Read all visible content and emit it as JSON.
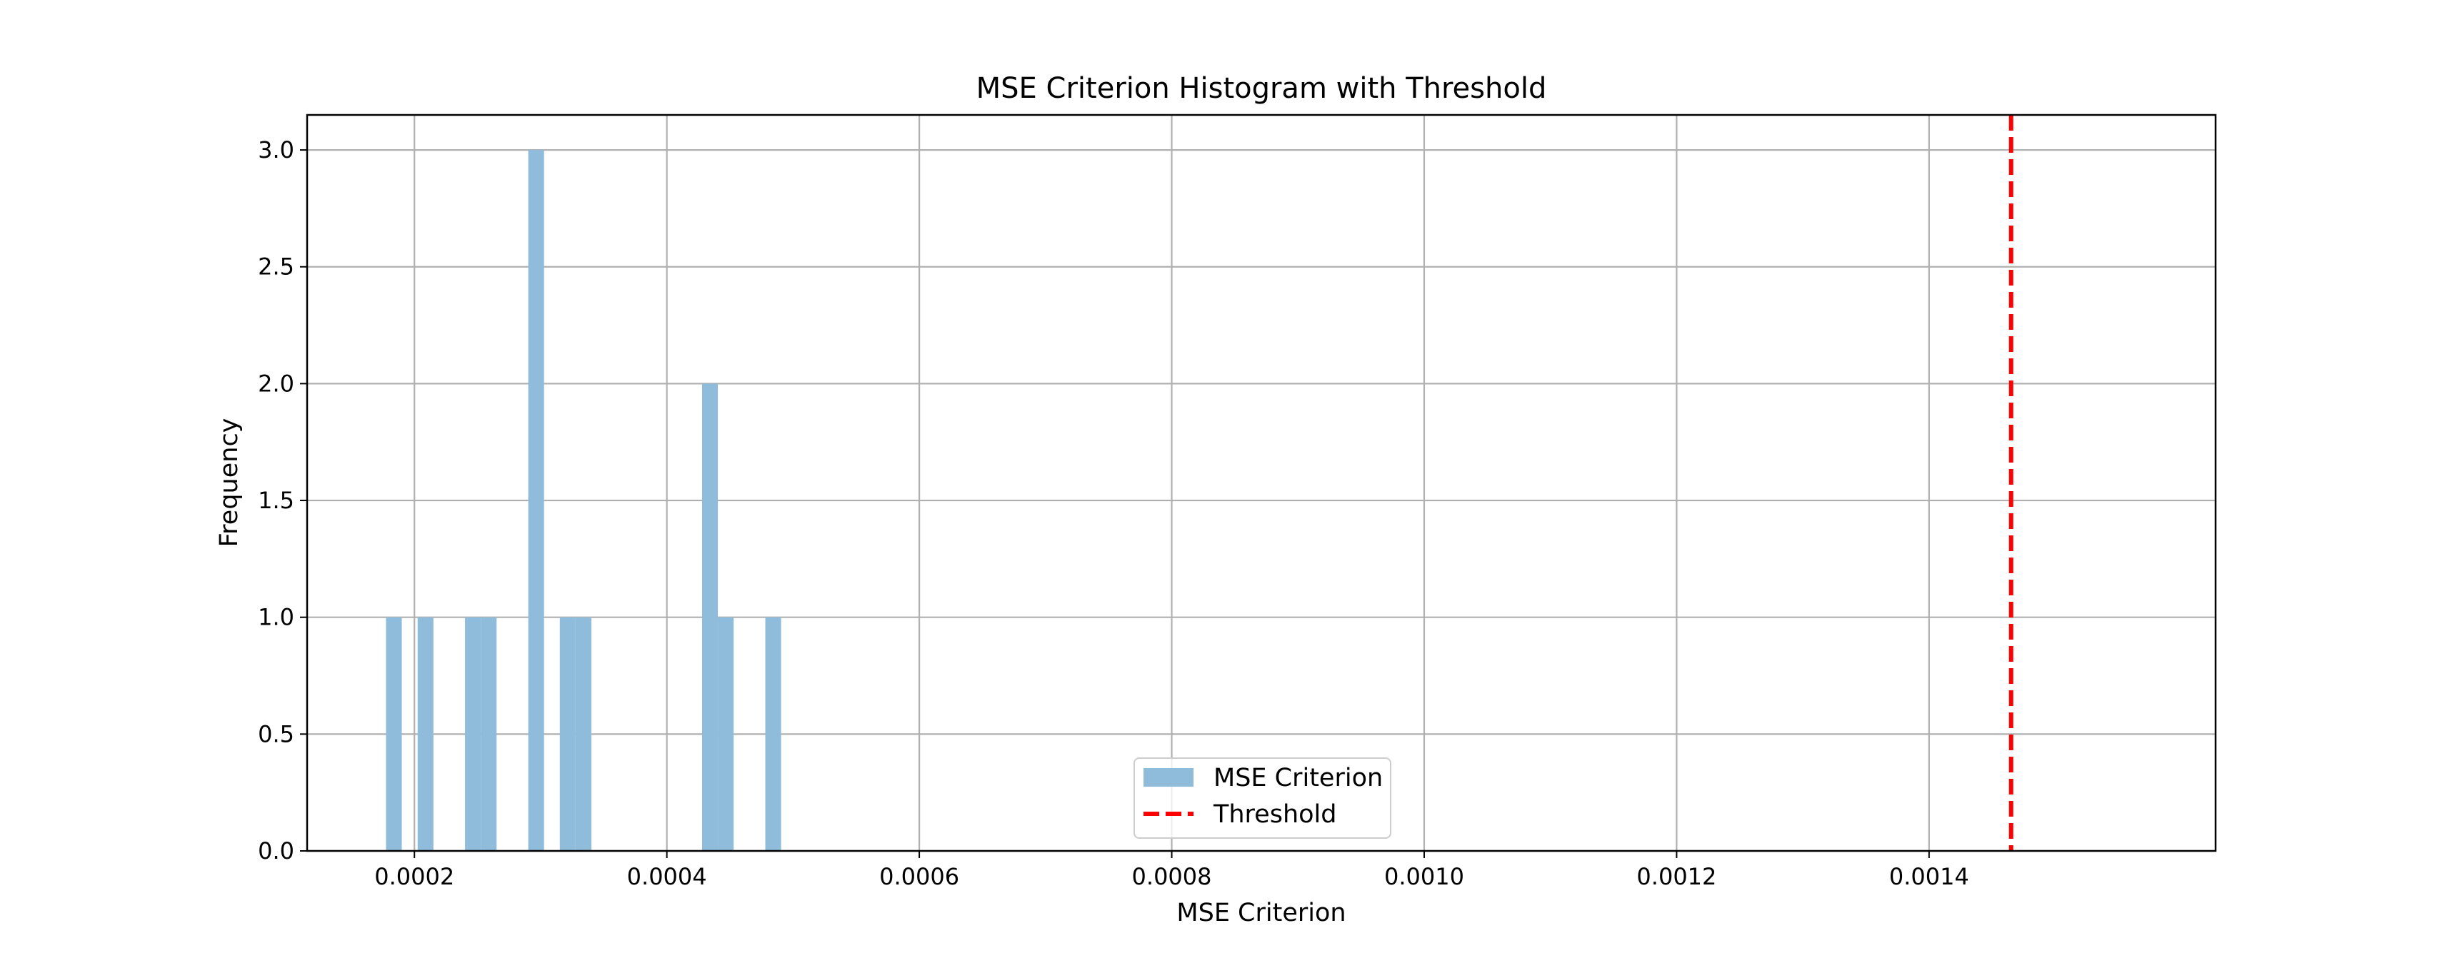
{
  "chart_data": {
    "type": "bar",
    "title": "MSE Criterion Histogram with Threshold",
    "xlabel": "MSE Criterion",
    "ylabel": "Frequency",
    "xlim": [
      0.000115,
      0.001627
    ],
    "ylim": [
      0,
      3.15
    ],
    "grid": true,
    "legend_position": "lower center",
    "x_ticks": [
      0.0002,
      0.0004,
      0.0006,
      0.0008,
      0.001,
      0.0012,
      0.0014
    ],
    "x_tick_labels": [
      "0.0002",
      "0.0004",
      "0.0006",
      "0.0008",
      "0.0010",
      "0.0012",
      "0.0014"
    ],
    "y_ticks": [
      0,
      0.5,
      1.0,
      1.5,
      2.0,
      2.5,
      3.0
    ],
    "y_tick_labels": [
      "0.0",
      "0.5",
      "1.0",
      "1.5",
      "2.0",
      "2.5",
      "3.0"
    ],
    "bin_width": 1.25e-05,
    "series": [
      {
        "name": "MSE Criterion",
        "color": "#8fbcdb",
        "bin_starts": [
          0.0001775,
          0.00020255,
          0.0002401,
          0.0002526,
          0.0002902,
          0.0003152,
          0.0003277,
          0.0004279,
          0.0004404,
          0.000478
        ],
        "values": [
          1,
          1,
          1,
          1,
          3,
          1,
          1,
          2,
          1,
          1
        ]
      }
    ],
    "threshold": {
      "name": "Threshold",
      "value": 0.001465,
      "color": "#ff0000",
      "style": "dashed"
    }
  }
}
